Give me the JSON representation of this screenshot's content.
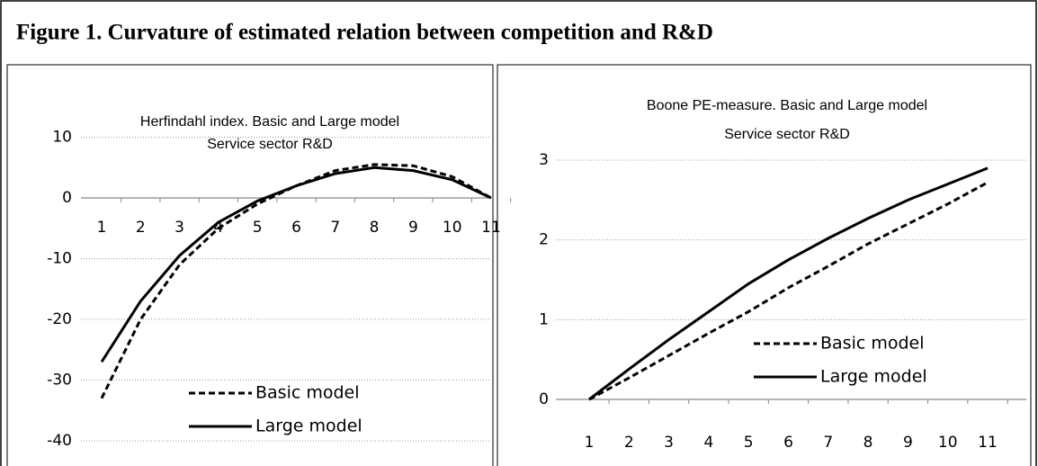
{
  "title": "Figure 1. Curvature of estimated relation between competition and R&D",
  "chart_data": [
    {
      "type": "line",
      "title": "Herfindahl index. Basic and Large model",
      "subtitle": "Service sector R&D",
      "categories": [
        "1",
        "2",
        "3",
        "4",
        "5",
        "6",
        "7",
        "8",
        "9",
        "10",
        "11"
      ],
      "ylim": [
        -40,
        10
      ],
      "yticks": [
        -40,
        -30,
        -20,
        -10,
        0,
        10
      ],
      "grid": true,
      "series": [
        {
          "name": "Basic model",
          "color": "#000000",
          "style": "dashed",
          "values": [
            -33,
            -20,
            -11,
            -5,
            -1,
            2,
            4.5,
            5.5,
            5.3,
            3.5,
            0
          ]
        },
        {
          "name": "Large model",
          "color": "#000000",
          "style": "solid",
          "values": [
            -27,
            -17,
            -9.5,
            -4,
            -0.5,
            2,
            4,
            5,
            4.5,
            3,
            0
          ]
        }
      ]
    },
    {
      "type": "line",
      "title": "Boone PE-measure. Basic and Large model",
      "subtitle": "Service sector R&D",
      "categories": [
        "1",
        "2",
        "3",
        "4",
        "5",
        "6",
        "7",
        "8",
        "9",
        "10",
        "11"
      ],
      "ylim": [
        0,
        3
      ],
      "yticks": [
        0,
        1,
        2,
        3
      ],
      "grid": true,
      "series": [
        {
          "name": "Basic model",
          "color": "#000000",
          "style": "dashed",
          "values": [
            0,
            0.27,
            0.55,
            0.83,
            1.1,
            1.4,
            1.67,
            1.95,
            2.2,
            2.45,
            2.72
          ]
        },
        {
          "name": "Large model",
          "color": "#000000",
          "style": "solid",
          "values": [
            0,
            0.38,
            0.75,
            1.1,
            1.45,
            1.75,
            2.02,
            2.27,
            2.5,
            2.7,
            2.9
          ]
        }
      ]
    }
  ]
}
